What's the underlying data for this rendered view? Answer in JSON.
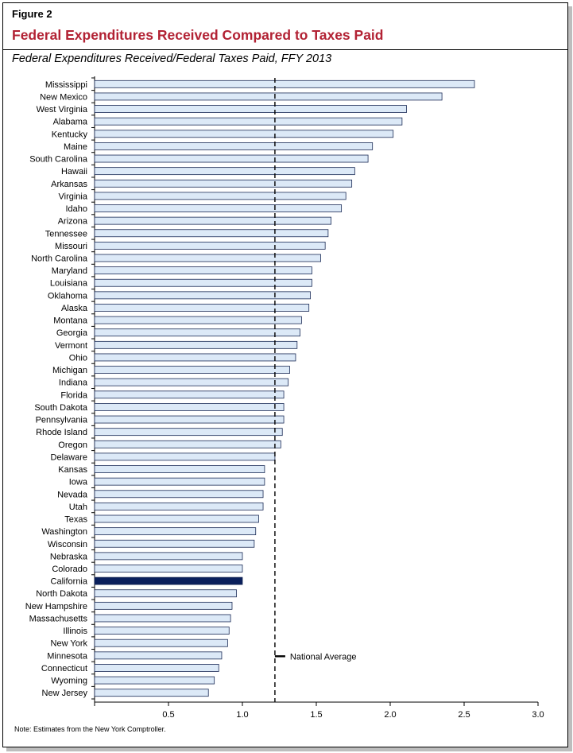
{
  "figure_label": "Figure 2",
  "figure_title": "Federal Expenditures Received Compared to Taxes Paid",
  "subtitle": "Federal Expenditures Received/Federal Taxes Paid, FFY 2013",
  "note": "Note: Estimates from the New York Comptroller.",
  "colors": {
    "title_red": "#b22234",
    "bar_fill": "#dce9f7",
    "bar_highlight": "#0a1f5c",
    "bar_stroke": "#1a2a55"
  },
  "chart_data": {
    "type": "bar",
    "orientation": "horizontal",
    "categories": [
      "Mississippi",
      "New Mexico",
      "West Virginia",
      "Alabama",
      "Kentucky",
      "Maine",
      "South Carolina",
      "Hawaii",
      "Arkansas",
      "Virginia",
      "Idaho",
      "Arizona",
      "Tennessee",
      "Missouri",
      "North Carolina",
      "Maryland",
      "Louisiana",
      "Oklahoma",
      "Alaska",
      "Montana",
      "Georgia",
      "Vermont",
      "Ohio",
      "Michigan",
      "Indiana",
      "Florida",
      "South Dakota",
      "Pennsylvania",
      "Rhode Island",
      "Oregon",
      "Delaware",
      "Kansas",
      "Iowa",
      "Nevada",
      "Utah",
      "Texas",
      "Washington",
      "Wisconsin",
      "Nebraska",
      "Colorado",
      "California",
      "North Dakota",
      "New Hampshire",
      "Massachusetts",
      "Illinois",
      "New York",
      "Minnesota",
      "Connecticut",
      "Wyoming",
      "New Jersey"
    ],
    "values": [
      2.57,
      2.35,
      2.11,
      2.08,
      2.02,
      1.88,
      1.85,
      1.76,
      1.74,
      1.7,
      1.67,
      1.6,
      1.58,
      1.56,
      1.53,
      1.47,
      1.47,
      1.46,
      1.45,
      1.4,
      1.39,
      1.37,
      1.36,
      1.32,
      1.31,
      1.28,
      1.28,
      1.28,
      1.27,
      1.26,
      1.22,
      1.15,
      1.15,
      1.14,
      1.14,
      1.11,
      1.09,
      1.08,
      1.0,
      1.0,
      1.0,
      0.96,
      0.93,
      0.92,
      0.91,
      0.9,
      0.86,
      0.84,
      0.81,
      0.77
    ],
    "highlight": "California",
    "reference_line": {
      "value": 1.22,
      "label": "National Average",
      "style": "dashed"
    },
    "xlim": [
      0,
      3.0
    ],
    "x_ticks": [
      "0.5",
      "1.0",
      "1.5",
      "2.0",
      "2.5",
      "3.0"
    ],
    "x_tick_values": [
      0.5,
      1.0,
      1.5,
      2.0,
      2.5,
      3.0
    ],
    "grid": false
  }
}
